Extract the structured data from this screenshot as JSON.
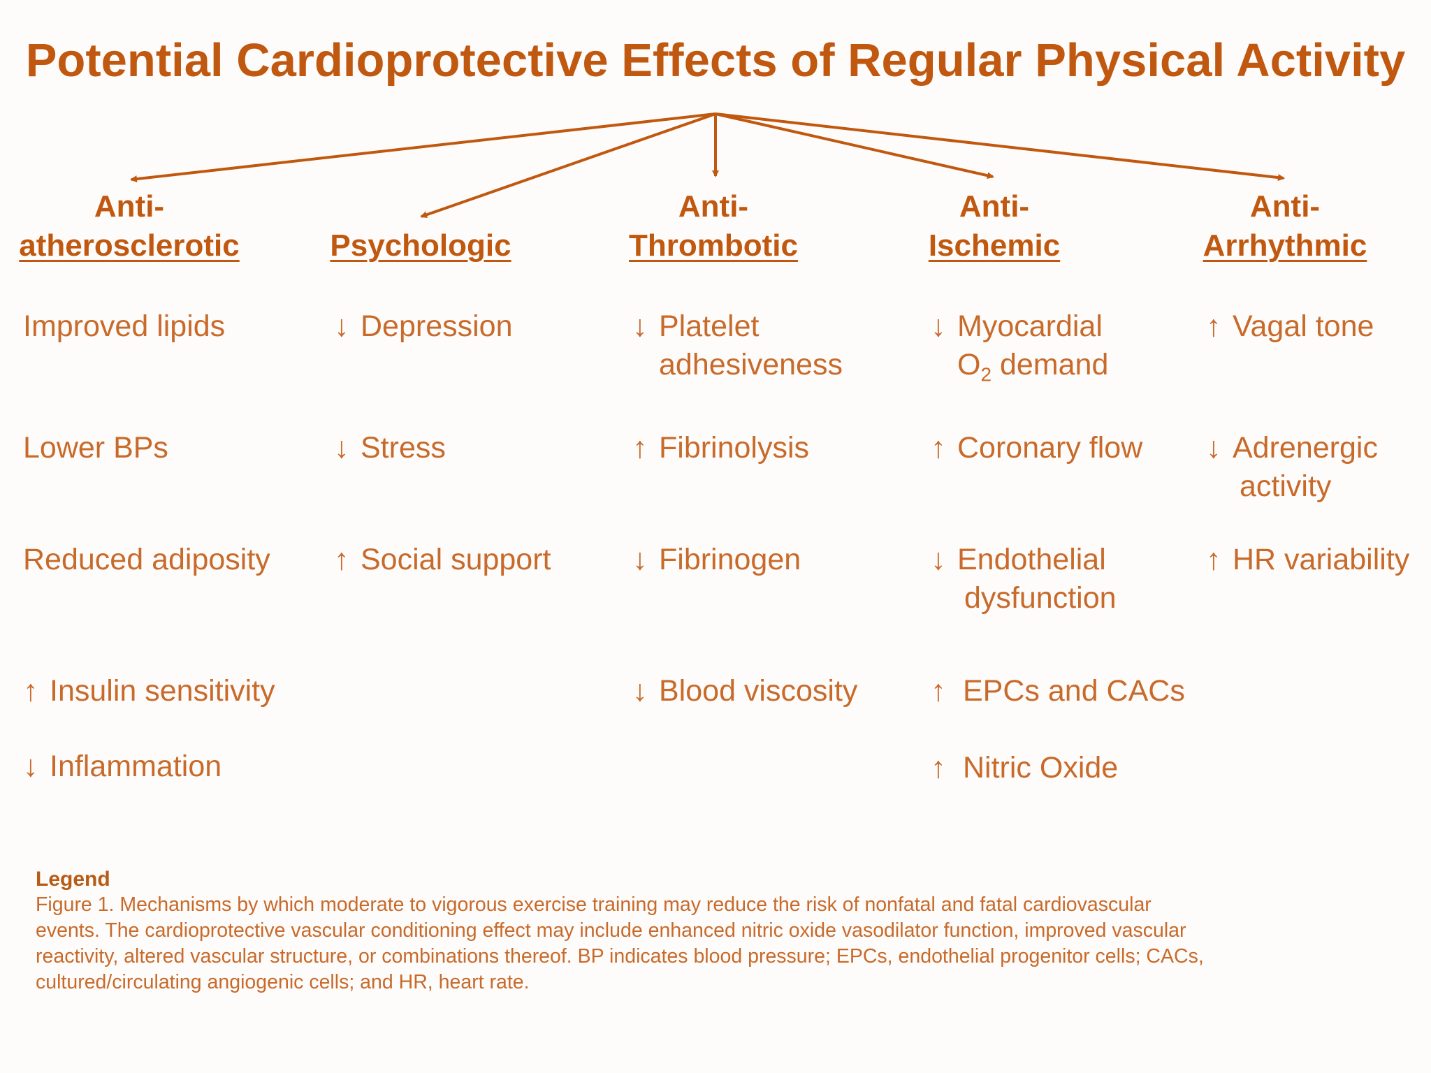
{
  "title": "Potential Cardioprotective Effects of Regular Physical Activity",
  "columns": [
    {
      "heading_line1": "Anti-",
      "heading_line2": "atherosclerotic",
      "items": [
        {
          "arrow": "",
          "text": "Improved lipids",
          "cont": ""
        },
        {
          "arrow": "",
          "text": "Lower BPs",
          "cont": ""
        },
        {
          "arrow": "",
          "text": "Reduced adiposity",
          "cont": ""
        },
        {
          "arrow": "↑",
          "text": "Insulin sensitivity",
          "cont": ""
        },
        {
          "arrow": "↓",
          "text": "Inflammation",
          "cont": ""
        }
      ]
    },
    {
      "heading_line1": "",
      "heading_line2": "Psychologic",
      "items": [
        {
          "arrow": "↓",
          "text": "Depression",
          "cont": ""
        },
        {
          "arrow": "↓",
          "text": "Stress",
          "cont": ""
        },
        {
          "arrow": "↑",
          "text": "Social support",
          "cont": ""
        }
      ]
    },
    {
      "heading_line1": "Anti-",
      "heading_line2": "Thrombotic",
      "items": [
        {
          "arrow": "↓",
          "text": "Platelet",
          "cont": "adhesiveness"
        },
        {
          "arrow": "↑",
          "text": "Fibrinolysis",
          "cont": ""
        },
        {
          "arrow": "↓",
          "text": "Fibrinogen",
          "cont": ""
        },
        {
          "arrow": "↓",
          "text": "Blood viscosity",
          "cont": ""
        }
      ]
    },
    {
      "heading_line1": "Anti-",
      "heading_line2": "Ischemic",
      "items": [
        {
          "arrow": "↓",
          "text": "Myocardial",
          "cont_prefix": "O",
          "cont_sub": "2",
          "cont": " demand"
        },
        {
          "arrow": "↑",
          "text": "Coronary flow",
          "cont": ""
        },
        {
          "arrow": "↓",
          "text": "Endothelial",
          "cont": "dysfunction"
        },
        {
          "arrow": "↑",
          "text": "EPCs and CACs",
          "cont": ""
        },
        {
          "arrow": "↑",
          "text": "Nitric Oxide",
          "cont": ""
        }
      ]
    },
    {
      "heading_line1": "Anti-",
      "heading_line2": "Arrhythmic",
      "items": [
        {
          "arrow": "↑",
          "text": "Vagal tone",
          "cont": ""
        },
        {
          "arrow": "↓",
          "text": "Adrenergic",
          "cont": "activity"
        },
        {
          "arrow": "↑",
          "text": "HR variability",
          "cont": ""
        }
      ]
    }
  ],
  "legend": {
    "title": "Legend",
    "text": "Figure 1.  Mechanisms by which moderate to vigorous exercise training may reduce the risk of nonfatal and fatal cardiovascular events.  The cardioprotective vascular conditioning effect may include enhanced nitric oxide vasodilator function, improved vascular reactivity, altered vascular structure, or combinations thereof.  BP indicates blood pressure; EPCs, endothelial progenitor cells; CACs, cultured/circulating angiogenic cells; and HR, heart rate."
  },
  "colors": {
    "accent": "#c0580f",
    "text": "#c86a2a",
    "background": "#fdfcfb"
  }
}
